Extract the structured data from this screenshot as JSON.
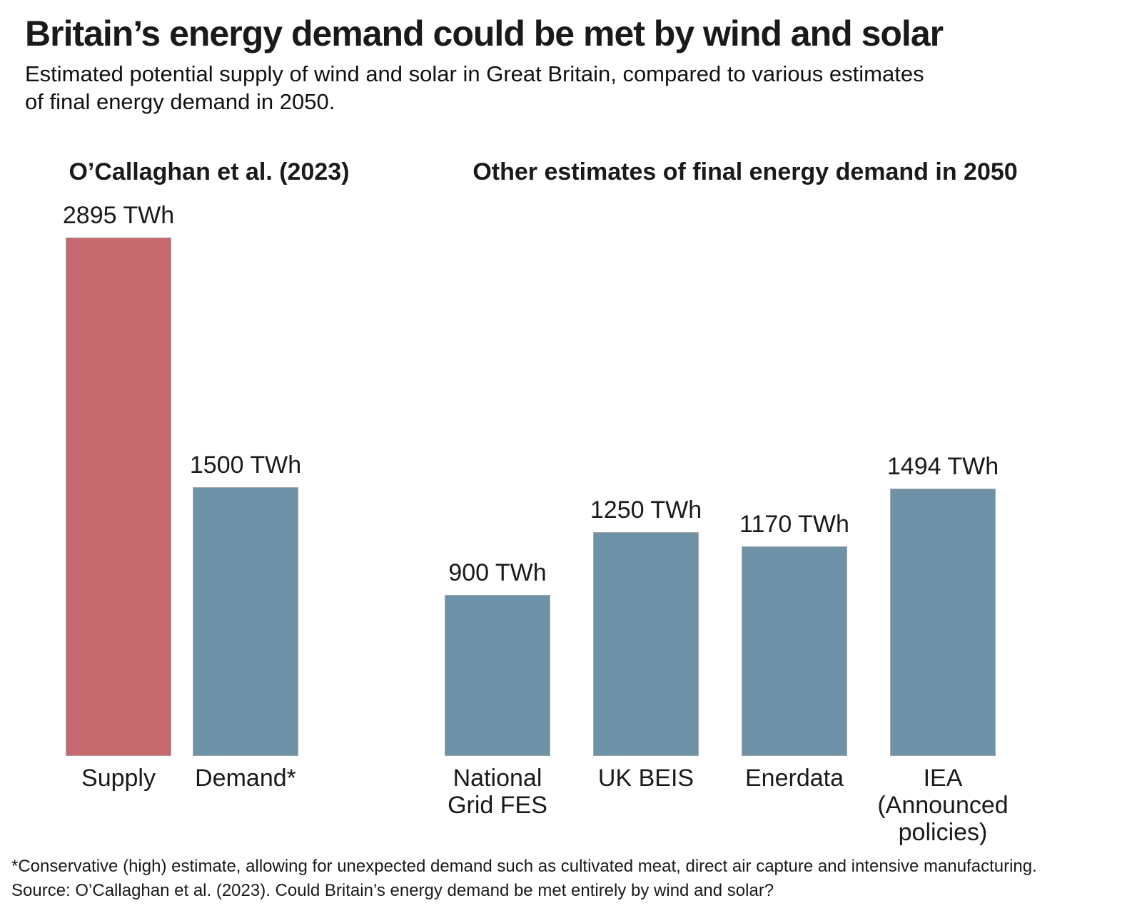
{
  "title": "Britain’s energy demand could be met by wind and solar",
  "subtitle": "Estimated potential supply of wind and solar in Great Britain, compared to various estimates\nof final energy demand in 2050.",
  "group_headers": {
    "left": "O’Callaghan et al. (2023)",
    "right": "Other estimates of final energy demand in 2050"
  },
  "footnote": "*Conservative (high) estimate, allowing for unexpected demand such as cultivated meat, direct air capture and intensive manufacturing.",
  "source": "Source: O’Callaghan et al. (2023). Could Britain’s energy demand be met entirely by wind and solar?",
  "colors": {
    "supply_red": "#C5696F",
    "demand_blue": "#6E92A7",
    "bar_border": "#a8a8a8",
    "text": "#1a1a1a"
  },
  "chart_data": {
    "type": "bar",
    "unit": "TWh",
    "ylim": [
      0,
      2895
    ],
    "grid": false,
    "legend": false,
    "groups": [
      {
        "header": "O’Callaghan et al. (2023)",
        "categories": [
          "Supply",
          "Demand*"
        ],
        "values": [
          2895,
          1500
        ]
      },
      {
        "header": "Other estimates of final energy demand in 2050",
        "categories": [
          "National Grid FES",
          "UK BEIS",
          "Enerdata",
          "IEA (Announced policies)"
        ],
        "values": [
          900,
          1250,
          1170,
          1494
        ]
      }
    ],
    "bars": [
      {
        "id": "supply",
        "label": "Supply",
        "value": 2895,
        "value_label": "2895 TWh",
        "color_key": "supply_red"
      },
      {
        "id": "demand",
        "label": "Demand*",
        "value": 1500,
        "value_label": "1500 TWh",
        "color_key": "demand_blue"
      },
      {
        "id": "national-grid-fes",
        "label": "National\nGrid FES",
        "value": 900,
        "value_label": "900 TWh",
        "color_key": "demand_blue"
      },
      {
        "id": "uk-beis",
        "label": "UK BEIS",
        "value": 1250,
        "value_label": "1250 TWh",
        "color_key": "demand_blue"
      },
      {
        "id": "enerdata",
        "label": "Enerdata",
        "value": 1170,
        "value_label": "1170 TWh",
        "color_key": "demand_blue"
      },
      {
        "id": "iea",
        "label": "IEA\n(Announced\npolicies)",
        "value": 1494,
        "value_label": "1494 TWh",
        "color_key": "demand_blue"
      }
    ]
  }
}
